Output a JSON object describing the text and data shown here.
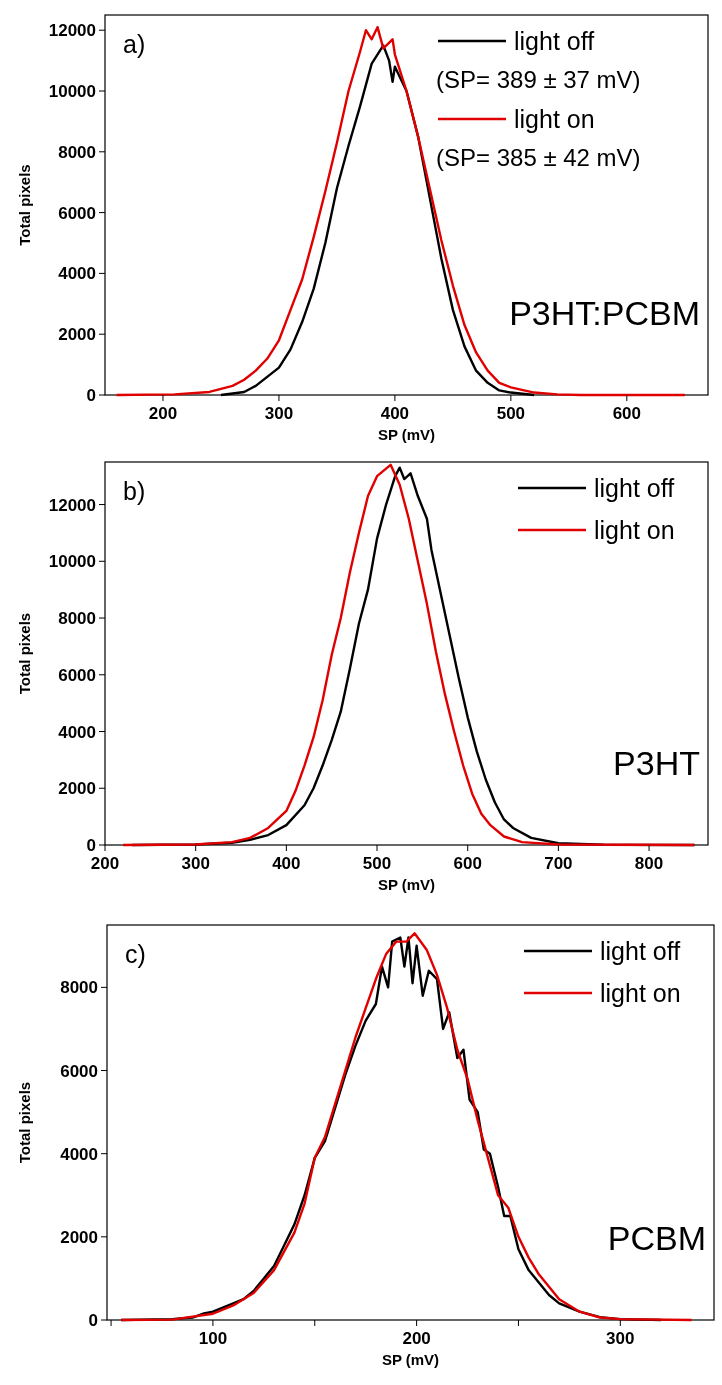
{
  "chart_data": [
    {
      "type": "line",
      "xlabel": "SP (mV)",
      "ylabel": "Total pixels",
      "annotations": [
        "a)",
        "(SP= 389 ± 37 mV)",
        "(SP= 385 ± 42 mV)",
        "P3HT:PCBM"
      ],
      "xlim": [
        150,
        670
      ],
      "ylim": [
        0,
        12500
      ],
      "xticks": [
        200,
        300,
        400,
        500,
        600
      ],
      "yticks": [
        0,
        2000,
        4000,
        6000,
        8000,
        10000,
        12000
      ],
      "grid": false,
      "legend": "top right",
      "marker": "none",
      "line_style": "solid",
      "series": [
        {
          "name": "light off",
          "color": "#000000",
          "x": [
            250,
            270,
            280,
            300,
            310,
            320,
            330,
            340,
            350,
            360,
            370,
            380,
            390,
            395,
            398,
            400,
            410,
            420,
            430,
            440,
            450,
            460,
            470,
            480,
            490,
            500,
            520
          ],
          "values": [
            0,
            100,
            300,
            900,
            1500,
            2400,
            3500,
            5000,
            6800,
            8200,
            9500,
            10900,
            11500,
            11000,
            10300,
            10800,
            10000,
            8500,
            6500,
            4500,
            2800,
            1600,
            800,
            400,
            150,
            80,
            0
          ]
        },
        {
          "name": "light on",
          "color": "#e00000",
          "x": [
            160,
            210,
            240,
            260,
            270,
            280,
            290,
            300,
            310,
            320,
            330,
            340,
            350,
            360,
            370,
            375,
            380,
            385,
            390,
            398,
            400,
            410,
            420,
            430,
            440,
            450,
            460,
            470,
            480,
            490,
            500,
            520,
            540,
            560,
            650
          ],
          "values": [
            0,
            20,
            100,
            300,
            500,
            800,
            1200,
            1800,
            2800,
            3800,
            5200,
            6700,
            8300,
            10000,
            11300,
            12000,
            11700,
            12100,
            11400,
            11700,
            11200,
            10000,
            8500,
            6800,
            5100,
            3600,
            2300,
            1400,
            800,
            400,
            250,
            80,
            20,
            0,
            0
          ]
        }
      ]
    },
    {
      "type": "line",
      "xlabel": "SP (mV)",
      "ylabel": "Total pixels",
      "annotations": [
        "b)",
        "P3HT"
      ],
      "xlim": [
        200,
        865
      ],
      "ylim": [
        0,
        13500
      ],
      "xticks": [
        200,
        300,
        400,
        500,
        600,
        700,
        800
      ],
      "yticks": [
        0,
        2000,
        4000,
        6000,
        8000,
        10000,
        12000
      ],
      "grid": false,
      "legend": "top right",
      "marker": "none",
      "line_style": "solid",
      "series": [
        {
          "name": "light off",
          "color": "#000000",
          "x": [
            230,
            300,
            340,
            360,
            380,
            400,
            420,
            430,
            440,
            450,
            460,
            470,
            480,
            490,
            500,
            510,
            520,
            525,
            530,
            537,
            545,
            555,
            560,
            570,
            580,
            590,
            600,
            610,
            620,
            630,
            640,
            650,
            670,
            700,
            750,
            850
          ],
          "values": [
            0,
            20,
            80,
            180,
            350,
            700,
            1400,
            2000,
            2800,
            3700,
            4700,
            6200,
            7800,
            9000,
            10800,
            12000,
            13000,
            13300,
            12900,
            13100,
            12300,
            11500,
            10400,
            8900,
            7400,
            5900,
            4500,
            3300,
            2300,
            1500,
            900,
            600,
            250,
            60,
            10,
            0
          ]
        },
        {
          "name": "light on",
          "color": "#e00000",
          "x": [
            220,
            300,
            340,
            360,
            380,
            400,
            410,
            420,
            430,
            440,
            450,
            460,
            470,
            480,
            490,
            500,
            515,
            525,
            535,
            545,
            555,
            565,
            575,
            585,
            595,
            605,
            615,
            625,
            640,
            660,
            700,
            850
          ],
          "values": [
            0,
            20,
            100,
            250,
            600,
            1200,
            1900,
            2800,
            3800,
            5100,
            6700,
            8000,
            9600,
            11000,
            12300,
            13000,
            13400,
            12700,
            11500,
            10000,
            8500,
            6800,
            5300,
            4000,
            2800,
            1800,
            1100,
            700,
            300,
            100,
            20,
            0
          ]
        }
      ]
    },
    {
      "type": "line",
      "xlabel": "SP (mV)",
      "ylabel": "Total pixels",
      "annotations": [
        "c)",
        "PCBM"
      ],
      "xlim": [
        48,
        346
      ],
      "ylim": [
        0,
        9500
      ],
      "xticks": [
        {
          "value": 50,
          "label": null
        },
        100,
        {
          "value": 150,
          "label": null
        },
        200,
        {
          "value": 250,
          "label": null
        },
        300
      ],
      "yticks": [
        0,
        2000,
        4000,
        6000,
        8000
      ],
      "grid": false,
      "legend": "top right",
      "marker": "none",
      "line_style": "solid",
      "series": [
        {
          "name": "light off",
          "color": "#000000",
          "x": [
            55,
            80,
            90,
            95,
            100,
            110,
            115,
            120,
            125,
            130,
            135,
            140,
            145,
            150,
            155,
            160,
            165,
            170,
            175,
            180,
            183,
            186,
            188,
            192,
            194,
            196,
            198,
            200,
            203,
            206,
            210,
            213,
            216,
            220,
            223,
            226,
            230,
            233,
            236,
            240,
            243,
            246,
            250,
            255,
            260,
            265,
            270,
            280,
            290,
            300,
            320
          ],
          "values": [
            0,
            20,
            60,
            150,
            200,
            400,
            500,
            700,
            1000,
            1300,
            1800,
            2300,
            3000,
            3900,
            4300,
            5100,
            5900,
            6600,
            7200,
            7600,
            8500,
            8000,
            9100,
            9200,
            8500,
            9200,
            8100,
            9000,
            7800,
            8400,
            8200,
            7000,
            7400,
            6300,
            6500,
            5300,
            5000,
            4100,
            4000,
            3200,
            2500,
            2500,
            1700,
            1200,
            900,
            600,
            400,
            200,
            70,
            20,
            0
          ]
        },
        {
          "name": "light on",
          "color": "#e00000",
          "x": [
            55,
            80,
            100,
            110,
            120,
            130,
            140,
            145,
            150,
            155,
            160,
            165,
            170,
            175,
            180,
            185,
            190,
            195,
            199,
            205,
            210,
            215,
            220,
            225,
            230,
            235,
            240,
            245,
            250,
            255,
            260,
            270,
            280,
            290,
            300,
            335
          ],
          "values": [
            0,
            10,
            150,
            350,
            650,
            1200,
            2100,
            2800,
            3900,
            4400,
            5200,
            6000,
            6800,
            7500,
            8200,
            8800,
            9100,
            9100,
            9300,
            8900,
            8300,
            7500,
            6500,
            5800,
            4800,
            3900,
            3000,
            2700,
            2000,
            1500,
            1100,
            500,
            200,
            60,
            20,
            0
          ]
        }
      ]
    }
  ]
}
